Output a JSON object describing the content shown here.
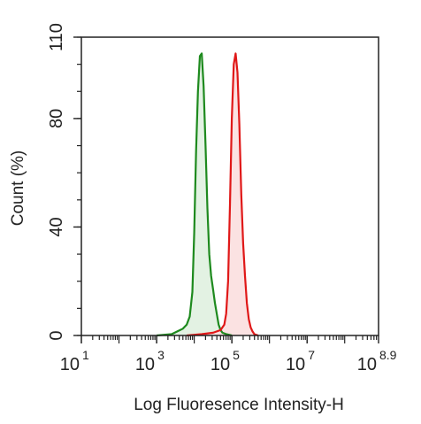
{
  "chart_data": {
    "type": "area",
    "xlabel": "Log Fluoresence Intensity-H",
    "ylabel": "Count  (%)",
    "x_scale": "log10",
    "xlim": [
      1,
      8.9
    ],
    "ylim": [
      0,
      110
    ],
    "x_ticks": [
      {
        "value": 1,
        "base": "10",
        "exp": "1"
      },
      {
        "value": 3,
        "base": "10",
        "exp": "3"
      },
      {
        "value": 5,
        "base": "10",
        "exp": "5"
      },
      {
        "value": 7,
        "base": "10",
        "exp": "7"
      },
      {
        "value": 8.9,
        "base": "10",
        "exp": "8.9"
      }
    ],
    "y_ticks": [
      {
        "value": 0,
        "label": "0"
      },
      {
        "value": 40,
        "label": "40"
      },
      {
        "value": 80,
        "label": "80"
      },
      {
        "value": 110,
        "label": "110"
      }
    ],
    "grid": false,
    "legend": "none",
    "series": [
      {
        "color": "#1e8a1e",
        "fill": "#e3f2e3",
        "x": [
          3.0,
          3.4,
          3.55,
          3.7,
          3.8,
          3.88,
          3.95,
          4.0,
          4.05,
          4.1,
          4.15,
          4.2,
          4.25,
          4.3,
          4.35,
          4.4,
          4.45,
          4.5,
          4.55,
          4.6,
          4.65,
          4.7,
          4.75,
          4.85,
          5.0
        ],
        "y": [
          0,
          0.5,
          1.5,
          2.5,
          4,
          7,
          16,
          38,
          68,
          90,
          103,
          104,
          92,
          70,
          47,
          30,
          22,
          17,
          12,
          8,
          4,
          2,
          1,
          0.5,
          0
        ]
      },
      {
        "color": "#e01818",
        "fill": "#fbe2e2",
        "x": [
          3.8,
          4.2,
          4.5,
          4.7,
          4.8,
          4.85,
          4.9,
          4.95,
          5.0,
          5.05,
          5.1,
          5.15,
          5.2,
          5.25,
          5.3,
          5.35,
          5.4,
          5.45,
          5.5,
          5.55,
          5.6,
          5.7
        ],
        "y": [
          0,
          0.5,
          1,
          2,
          4,
          8,
          20,
          48,
          80,
          100,
          104,
          97,
          78,
          52,
          34,
          22,
          12,
          6,
          3,
          1.5,
          0.5,
          0
        ]
      }
    ]
  }
}
